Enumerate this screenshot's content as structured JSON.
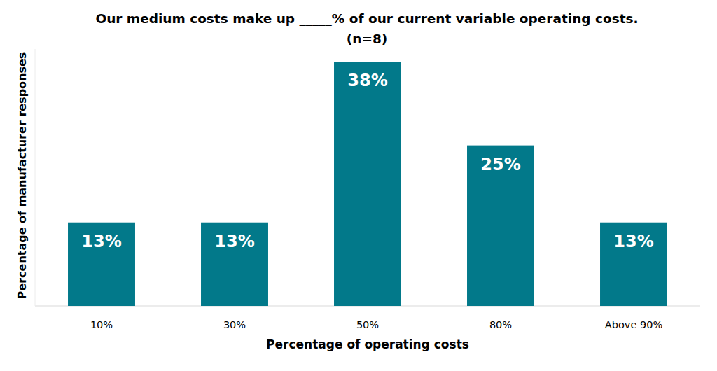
{
  "chart_data": {
    "type": "bar",
    "title": "Our medium costs make up _____% of our current variable operating costs.",
    "subtitle": "(n=8)",
    "x_label": "Percentage of operating costs",
    "y_label": "Percentage of manufacturer responses",
    "categories": [
      "10%",
      "30%",
      "50%",
      "80%",
      "Above 90%"
    ],
    "values": [
      13,
      13,
      38,
      25,
      13
    ],
    "value_labels": [
      "13%",
      "13%",
      "38%",
      "25%",
      "13%"
    ],
    "color": "#02798a",
    "ylim": [
      0,
      40
    ],
    "data_labels": true,
    "tick_labels": "x",
    "grid": false
  }
}
